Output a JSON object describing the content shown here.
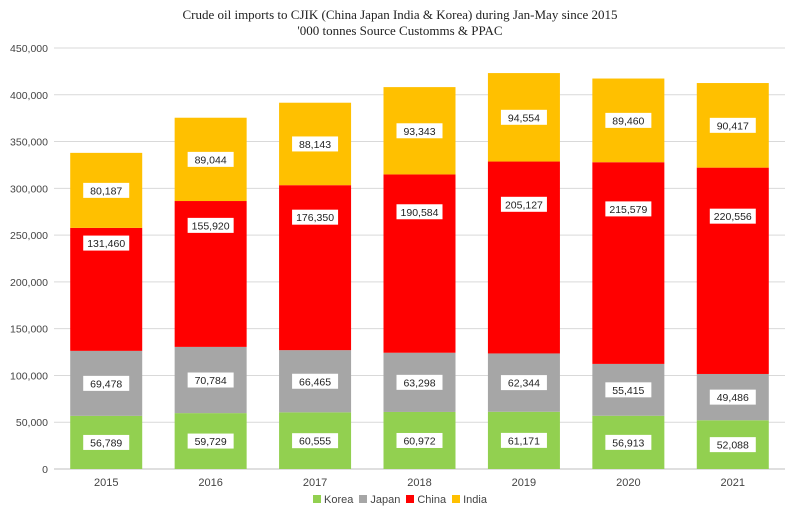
{
  "chart_data": {
    "type": "bar",
    "stacked": true,
    "title": "Crude oil imports to CJIK (China Japan India & Korea) during Jan-May since 2015",
    "subtitle": "'000 tonnes  Source Customms & PPAC",
    "categories": [
      "2015",
      "2016",
      "2017",
      "2018",
      "2019",
      "2020",
      "2021"
    ],
    "series": [
      {
        "name": "Korea",
        "color": "#92d050",
        "values": [
          56789,
          59729,
          60555,
          60972,
          61171,
          56913,
          52088
        ]
      },
      {
        "name": "Japan",
        "color": "#a6a6a6",
        "values": [
          69478,
          70784,
          66465,
          63298,
          62344,
          55415,
          49486
        ]
      },
      {
        "name": "China",
        "color": "#ff0000",
        "values": [
          131460,
          155920,
          176350,
          190584,
          205127,
          215579,
          220556
        ]
      },
      {
        "name": "India",
        "color": "#ffc000",
        "values": [
          80187,
          89044,
          88143,
          93343,
          94554,
          89460,
          90417
        ]
      }
    ],
    "ylim": [
      0,
      450000
    ],
    "yticks": [
      "0",
      "50,000",
      "100,000",
      "150,000",
      "200,000",
      "250,000",
      "300,000",
      "350,000",
      "400,000",
      "450,000"
    ],
    "grid": true,
    "legend": "bottom"
  }
}
